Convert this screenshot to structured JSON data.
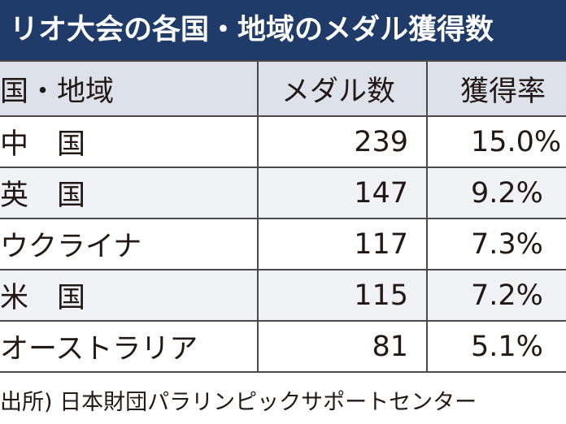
{
  "title": "リオ大会の各国・地域のメダル獲得数",
  "table": {
    "headers": [
      "国・地域",
      "メダル数",
      "獲得率"
    ],
    "rows": [
      {
        "country": "中　国",
        "medals": "239",
        "rate": "15.0%"
      },
      {
        "country": "英　国",
        "medals": "147",
        "rate": "9.2%"
      },
      {
        "country": "ウクライナ",
        "medals": "117",
        "rate": "7.3%"
      },
      {
        "country": "米　国",
        "medals": "115",
        "rate": "7.2%"
      },
      {
        "country": "オーストラリア",
        "medals": "81",
        "rate": "5.1%"
      }
    ]
  },
  "source": "出所) 日本財団パラリンピックサポートセンター"
}
